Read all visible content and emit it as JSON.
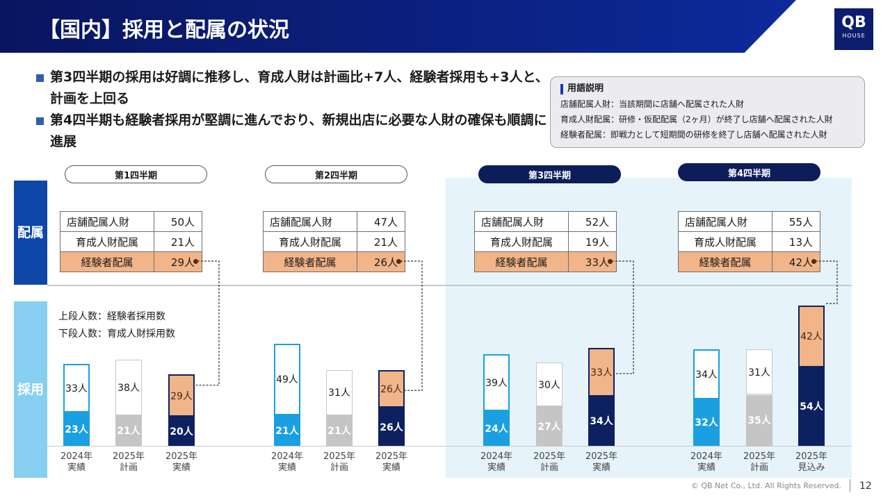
{
  "header": {
    "title": "【国内】採用と配属の状況",
    "logo_top": "QB",
    "logo_bottom": "HOUSE"
  },
  "bullets": [
    "第3四半期の採用は好調に推移し、育成人財は計画比+7人、経験者採用も+3人と、計画を上回る",
    "第4四半期も経験者採用が堅調に進んでおり、新規出店に必要な人財の確保も順調に進展"
  ],
  "glossary": {
    "title": "用語説明",
    "lines": [
      "店舗配属人財：当該期間に店舗へ配属された人財",
      "育成人財配属：研修・仮配配属（2ヶ月）が終了し店舗へ配属された人財",
      "経験者配属：即戦力として短期間の研修を終了し店舗へ配属された人財"
    ]
  },
  "side_labels": {
    "assignment": "配属",
    "hiring": "採用"
  },
  "legend": {
    "upper": "上段人数：経験者採用数",
    "lower": "下段人数：育成人財採用数"
  },
  "table_labels": {
    "store": "店舗配属人財",
    "trainee": "育成人財配属",
    "experienced": "経験者配属"
  },
  "quarters": [
    {
      "name": "第1四半期",
      "store": "50人",
      "trainee": "21人",
      "experienced": "29人",
      "bars": [
        {
          "x1": "2024年",
          "x2": "実績",
          "top": "33人",
          "bottom": "23人"
        },
        {
          "x1": "2025年",
          "x2": "計画",
          "top": "38人",
          "bottom": "21人"
        },
        {
          "x1": "2025年",
          "x2": "実績",
          "top": "29人",
          "bottom": "20人"
        }
      ]
    },
    {
      "name": "第2四半期",
      "store": "47人",
      "trainee": "21人",
      "experienced": "26人",
      "bars": [
        {
          "x1": "2024年",
          "x2": "実績",
          "top": "49人",
          "bottom": "21人"
        },
        {
          "x1": "2025年",
          "x2": "計画",
          "top": "31人",
          "bottom": "21人"
        },
        {
          "x1": "2025年",
          "x2": "実績",
          "top": "26人",
          "bottom": "26人"
        }
      ]
    },
    {
      "name": "第3四半期",
      "store": "52人",
      "trainee": "19人",
      "experienced": "33人",
      "bars": [
        {
          "x1": "2024年",
          "x2": "実績",
          "top": "39人",
          "bottom": "24人"
        },
        {
          "x1": "2025年",
          "x2": "計画",
          "top": "30人",
          "bottom": "27人"
        },
        {
          "x1": "2025年",
          "x2": "実績",
          "top": "33人",
          "bottom": "34人"
        }
      ]
    },
    {
      "name": "第4四半期",
      "store": "55人",
      "trainee": "13人",
      "experienced": "42人",
      "bars": [
        {
          "x1": "2024年",
          "x2": "実績",
          "top": "34人",
          "bottom": "32人"
        },
        {
          "x1": "2025年",
          "x2": "計画",
          "top": "31人",
          "bottom": "35人"
        },
        {
          "x1": "2025年",
          "x2": "見込み",
          "top": "42人",
          "bottom": "54人"
        }
      ]
    }
  ],
  "chart_data": {
    "type": "bar",
    "stacked": true,
    "groups": [
      "第1四半期",
      "第2四半期",
      "第3四半期",
      "第4四半期"
    ],
    "categories": [
      "2024年実績",
      "2025年計画",
      "2025年実績/見込み"
    ],
    "series": [
      {
        "name": "下段人数：育成人財採用数",
        "values": [
          [
            23,
            21,
            20
          ],
          [
            21,
            21,
            26
          ],
          [
            24,
            27,
            34
          ],
          [
            32,
            35,
            54
          ]
        ]
      },
      {
        "name": "上段人数：経験者採用数",
        "values": [
          [
            33,
            38,
            29
          ],
          [
            49,
            31,
            26
          ],
          [
            39,
            30,
            33
          ],
          [
            34,
            31,
            42
          ]
        ]
      }
    ],
    "colors": {
      "y2024": "#1aa0e0",
      "plan": "#c5c5c5",
      "actual": "#0d2060",
      "experienced": "#f2b589",
      "highlight": "#e6f3fb"
    }
  },
  "footer": {
    "copyright": "© QB Net Co., Ltd. All Rights Reserved.",
    "page": "12"
  }
}
